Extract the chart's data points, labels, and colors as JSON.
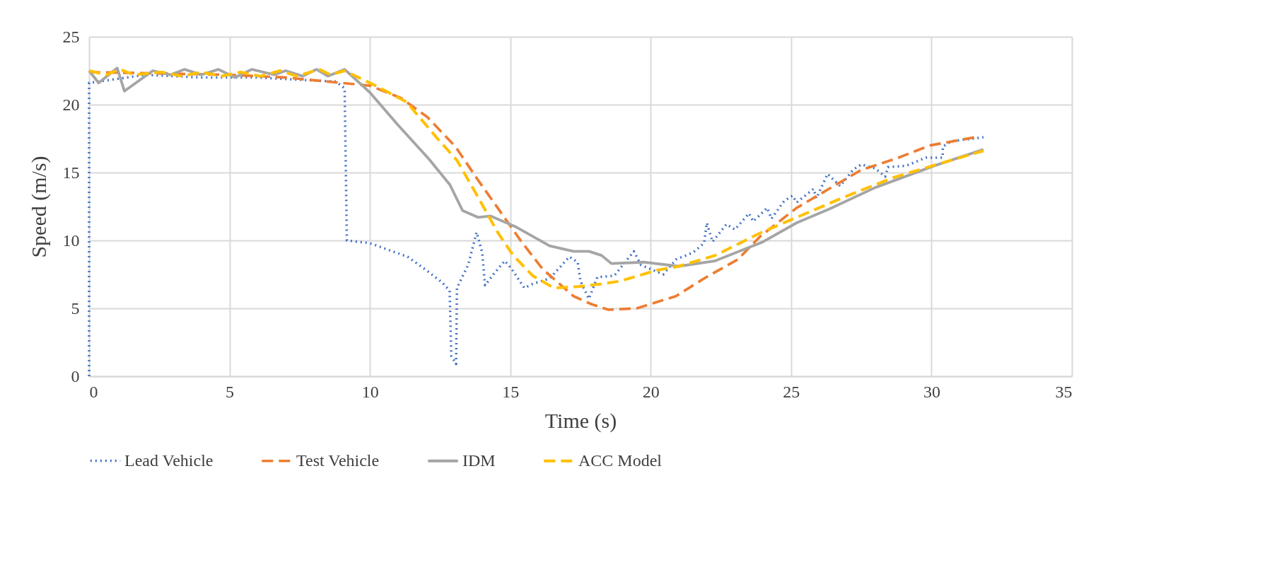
{
  "chart_data": {
    "type": "line",
    "xlabel": "Time (s)",
    "ylabel": "Speed (m/s)",
    "xlim": [
      0,
      35
    ],
    "xticks": [
      0,
      5,
      10,
      15,
      20,
      25,
      30,
      35
    ],
    "ylim": [
      0,
      25
    ],
    "yticks": [
      0,
      5,
      10,
      15,
      20,
      25
    ],
    "grid": true,
    "legend": "bottom",
    "marker": "none",
    "series": [
      {
        "name": "Lead Vehicle",
        "color": "#4472c4",
        "line_style": "dotted",
        "x": [
          0,
          0,
          2,
          4,
          6,
          7.8,
          8.8,
          9.1,
          9.18,
          10,
          11.34,
          11.95,
          12.58,
          12.84,
          12.9,
          13.07,
          13.1,
          13.5,
          13.8,
          14.0,
          14.1,
          14.4,
          14.8,
          15.05,
          15.5,
          15.8,
          16.4,
          16.8,
          17.1,
          17.4,
          17.5,
          17.8,
          18.1,
          18.7,
          19.4,
          19.65,
          20.45,
          20.9,
          21.5,
          21.9,
          22.0,
          22.2,
          22.7,
          23.0,
          23.5,
          23.65,
          24.15,
          24.3,
          24.75,
          25.05,
          25.2,
          25.8,
          25.9,
          26.3,
          26.75,
          27.2,
          27.5,
          28.0,
          28.35,
          28.45,
          29.1,
          29.8,
          30.4,
          30.4,
          30.7,
          31.85
        ],
        "values": [
          0,
          21.6,
          22.2,
          22.0,
          22.0,
          21.8,
          21.7,
          21.2,
          10.0,
          9.8,
          8.8,
          7.9,
          6.9,
          6.3,
          1.5,
          0.9,
          6.5,
          8.2,
          10.6,
          9.1,
          6.7,
          7.5,
          8.5,
          7.9,
          6.5,
          6.8,
          7.2,
          8.1,
          8.8,
          8.4,
          7.0,
          5.7,
          7.3,
          7.4,
          9.2,
          8.2,
          7.5,
          8.6,
          9.1,
          9.8,
          11.3,
          9.9,
          11.2,
          10.8,
          12.0,
          11.4,
          12.4,
          11.6,
          12.9,
          13.3,
          12.8,
          13.8,
          13.1,
          14.9,
          14.0,
          15.2,
          15.6,
          15.3,
          14.7,
          15.4,
          15.5,
          16.1,
          16.1,
          16.9,
          17.3,
          17.6
        ]
      },
      {
        "name": "Test Vehicle",
        "color": "#ed7d31",
        "line_style": "dashed",
        "x": [
          0,
          2.5,
          5,
          7,
          9,
          10,
          11.1,
          12.04,
          13.05,
          13.8,
          14.55,
          15.4,
          16.15,
          17.25,
          17.9,
          18.5,
          19.5,
          20.9,
          21.9,
          23.1,
          23.9,
          25.2,
          26.35,
          27.5,
          28.7,
          29.95,
          31.55
        ],
        "values": [
          22.4,
          22.3,
          22.2,
          22.0,
          21.6,
          21.4,
          20.5,
          19.1,
          16.9,
          14.6,
          12.4,
          9.9,
          7.9,
          5.9,
          5.3,
          4.9,
          5.0,
          5.9,
          7.2,
          8.6,
          10.3,
          12.4,
          13.8,
          15.2,
          16.0,
          17.0,
          17.6
        ]
      },
      {
        "name": "IDM",
        "color": "#a5a5a5",
        "line_style": "solid",
        "x": [
          0,
          0.34,
          1.0,
          1.26,
          2.27,
          2.9,
          3.4,
          4.0,
          4.6,
          5.2,
          5.8,
          6.6,
          7.0,
          7.6,
          8.1,
          8.5,
          9.1,
          10.0,
          11.0,
          12.1,
          12.85,
          13.3,
          13.85,
          14.3,
          15.2,
          16.4,
          17.25,
          17.8,
          18.25,
          18.6,
          19.75,
          21.0,
          22.3,
          24.0,
          25.2,
          26.35,
          28.0,
          30.1,
          31.85
        ],
        "values": [
          22.5,
          21.6,
          22.7,
          21.0,
          22.5,
          22.2,
          22.6,
          22.2,
          22.6,
          22.0,
          22.6,
          22.2,
          22.5,
          22.1,
          22.6,
          22.1,
          22.6,
          20.9,
          18.5,
          16.0,
          14.1,
          12.2,
          11.7,
          11.8,
          11.0,
          9.6,
          9.2,
          9.2,
          8.9,
          8.3,
          8.4,
          8.1,
          8.5,
          9.9,
          11.3,
          12.3,
          13.9,
          15.5,
          16.7
        ]
      },
      {
        "name": "ACC Model",
        "color": "#ffc000",
        "line_style": "dashed",
        "x": [
          0,
          0.6,
          1.1,
          1.6,
          2.6,
          3.3,
          4.0,
          4.7,
          5.4,
          6.1,
          6.8,
          7.4,
          8.2,
          8.6,
          9.1,
          10.2,
          11.3,
          12.45,
          13.1,
          13.85,
          14.55,
          15.1,
          15.8,
          16.55,
          17.4,
          18.25,
          18.9,
          20.2,
          21.0,
          22.3,
          23.95,
          25.2,
          26.9,
          28.6,
          30.2,
          31.85
        ],
        "values": [
          22.5,
          22.2,
          22.6,
          22.2,
          22.4,
          22.1,
          22.4,
          22.1,
          22.4,
          22.1,
          22.5,
          22.1,
          22.6,
          22.2,
          22.5,
          21.4,
          20.2,
          17.4,
          15.9,
          13.2,
          10.6,
          8.9,
          7.4,
          6.5,
          6.6,
          6.8,
          7.0,
          7.8,
          8.1,
          8.9,
          10.6,
          11.7,
          13.2,
          14.6,
          15.6,
          16.6
        ]
      }
    ]
  }
}
